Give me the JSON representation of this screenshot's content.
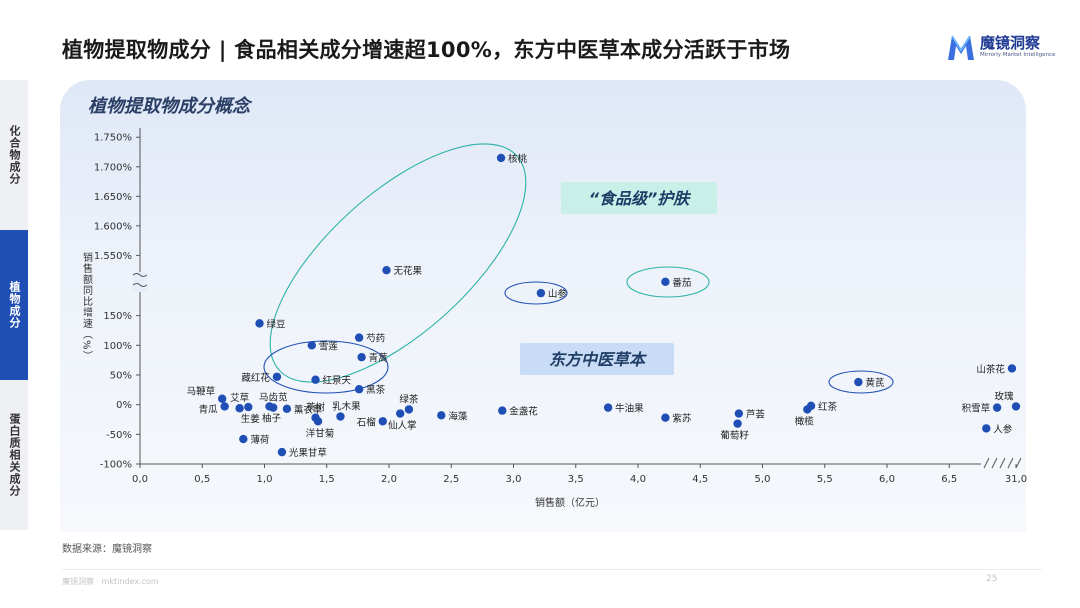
{
  "header": {
    "title": "植物提取物成分 | 食品相关成分增速超100%，东方中医草本成分活跃于市场"
  },
  "logo": {
    "name": "魔镜洞察",
    "subtitle": "Mirrorly Market Intelligence"
  },
  "side_tabs": [
    {
      "label": "化合物成分",
      "active": false
    },
    {
      "label": "植物成分",
      "active": true
    },
    {
      "label": "蛋白质相关成分",
      "active": false
    }
  ],
  "panel": {
    "title": "植物提取物成分概念"
  },
  "chart_data": {
    "type": "scatter",
    "title": "",
    "xlabel": "销售额（亿元）",
    "ylabel": "销售额同比增速（%）",
    "x_ticks": [
      "0,0",
      "0,5",
      "1,0",
      "1,5",
      "2,0",
      "2,5",
      "3,0",
      "3,5",
      "4,0",
      "4,5",
      "5,0",
      "5,5",
      "6,0",
      "6,5",
      "31,0"
    ],
    "y_ticks_upper": [
      "1.550%",
      "1.600%",
      "1.650%",
      "1.700%",
      "1.750%"
    ],
    "y_ticks_lower": [
      "-100%",
      "-50%",
      "0%",
      "50%",
      "100%",
      "150%"
    ],
    "y_break": true,
    "x_break": [
      6.6,
      31.0
    ],
    "grid": false,
    "marker_color": "#1f4fb5",
    "points": [
      {
        "label": "核桃",
        "x": 2.9,
        "y": 1715
      },
      {
        "label": "无花果",
        "x": 1.98,
        "y": 1525
      },
      {
        "label": "山参",
        "x": 3.22,
        "y": 188
      },
      {
        "label": "番茄",
        "x": 4.22,
        "y": 207
      },
      {
        "label": "绿豆",
        "x": 0.96,
        "y": 137
      },
      {
        "label": "芍药",
        "x": 1.76,
        "y": 113
      },
      {
        "label": "雪莲",
        "x": 1.38,
        "y": 100
      },
      {
        "label": "青蒿",
        "x": 1.78,
        "y": 80
      },
      {
        "label": "藏红花",
        "x": 1.1,
        "y": 47
      },
      {
        "label": "红景天",
        "x": 1.41,
        "y": 42
      },
      {
        "label": "黑茶",
        "x": 1.76,
        "y": 26
      },
      {
        "label": "马鞭草",
        "x": 0.66,
        "y": 10
      },
      {
        "label": "青瓜",
        "x": 0.68,
        "y": -3
      },
      {
        "label": "艾草",
        "x": 0.8,
        "y": -6
      },
      {
        "label": "马齿苋",
        "x": 1.07,
        "y": -5
      },
      {
        "label": "生姜",
        "x": 0.87,
        "y": -4
      },
      {
        "label": "柚子",
        "x": 1.04,
        "y": -3
      },
      {
        "label": "薰衣草",
        "x": 1.18,
        "y": -7
      },
      {
        "label": "茶树",
        "x": 1.41,
        "y": -22
      },
      {
        "label": "乳木果",
        "x": 1.61,
        "y": -20
      },
      {
        "label": "洋甘菊",
        "x": 1.43,
        "y": -28
      },
      {
        "label": "薄荷",
        "x": 0.83,
        "y": -58
      },
      {
        "label": "光果甘草",
        "x": 1.14,
        "y": -80
      },
      {
        "label": "石榴",
        "x": 1.95,
        "y": -28
      },
      {
        "label": "绿茶",
        "x": 2.16,
        "y": -8
      },
      {
        "label": "仙人掌",
        "x": 2.09,
        "y": -15
      },
      {
        "label": "海藻",
        "x": 2.42,
        "y": -18
      },
      {
        "label": "金盏花",
        "x": 2.91,
        "y": -10
      },
      {
        "label": "牛油果",
        "x": 3.76,
        "y": -5
      },
      {
        "label": "紫苏",
        "x": 4.22,
        "y": -22
      },
      {
        "label": "芦荟",
        "x": 4.81,
        "y": -15
      },
      {
        "label": "葡萄籽",
        "x": 4.8,
        "y": -32
      },
      {
        "label": "红茶",
        "x": 5.39,
        "y": -2
      },
      {
        "label": "橄榄",
        "x": 5.36,
        "y": -8
      },
      {
        "label": "黄芪",
        "x": 5.77,
        "y": 38
      },
      {
        "label": "山茶花",
        "x": 6.97,
        "y": 61
      },
      {
        "label": "积雪草",
        "x": 6.86,
        "y": -5
      },
      {
        "label": "玫瑰",
        "x": 7.0,
        "y": -3
      },
      {
        "label": "人参",
        "x": 6.78,
        "y": -40
      }
    ],
    "annotations": [
      {
        "text": "“食品级”护肤",
        "style": "green-box"
      },
      {
        "text": "东方中医草本",
        "style": "blue-box"
      }
    ]
  },
  "footer": {
    "source": "数据来源：魔镜洞察",
    "url": "魔镜洞察 · mktindex.com",
    "page": "25"
  }
}
